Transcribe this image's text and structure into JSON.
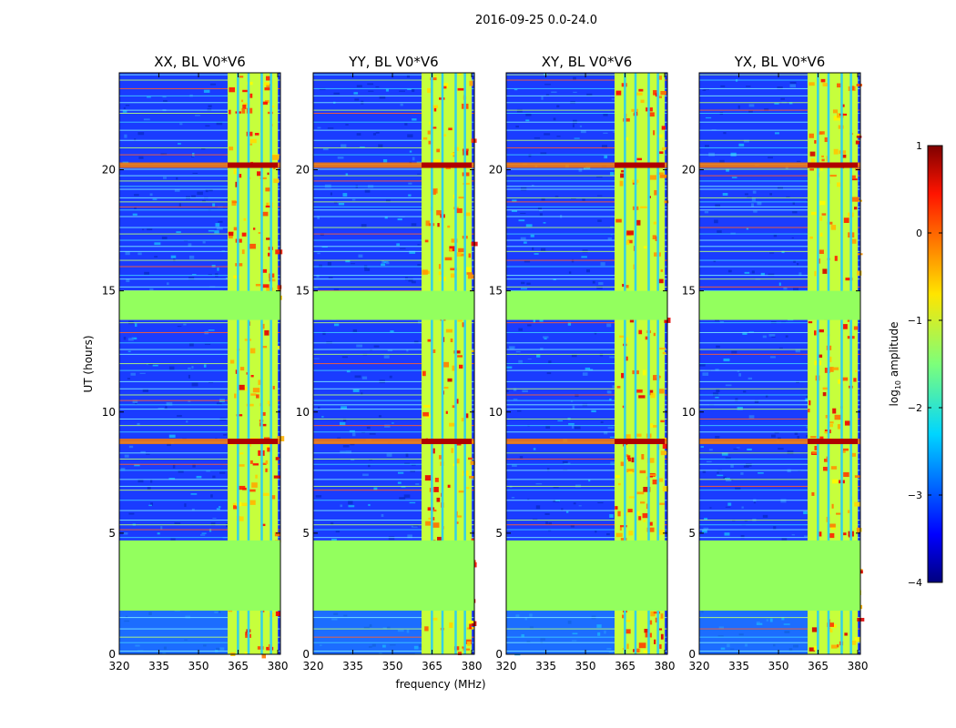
{
  "figure": {
    "suptitle": "2016-09-25 0.0-24.0",
    "xlabel": "frequency (MHz)",
    "ylabel": "UT (hours)"
  },
  "chart_data": {
    "type": "heatmap",
    "title": "2016-09-25 0.0-24.0",
    "xlabel": "frequency (MHz)",
    "ylabel": "UT (hours)",
    "xlim": [
      320,
      381
    ],
    "ylim": [
      0,
      24
    ],
    "xticks": [
      320,
      335,
      350,
      365,
      380
    ],
    "yticks": [
      0,
      5,
      10,
      15,
      20
    ],
    "colormap": "jet",
    "panels": [
      {
        "title": "XX, BL V0*V6"
      },
      {
        "title": "YY, BL V0*V6"
      },
      {
        "title": "XY, BL V0*V6"
      },
      {
        "title": "YX, BL V0*V6"
      }
    ],
    "masked_time_ranges_hours": [
      [
        1.8,
        4.7
      ],
      [
        13.8,
        15.0
      ]
    ],
    "flagged_frequency_band_mhz": [
      361,
      380
    ],
    "strong_rfi_time_hours": [
      8.6,
      20.0
    ],
    "colorbar": {
      "label": "log10 amplitude",
      "label_base": "log",
      "label_sub": "10",
      "label_rest": " amplitude",
      "range": [
        -4,
        1
      ],
      "ticks": [
        "1",
        "0",
        "−1",
        "−2",
        "−3",
        "−4"
      ]
    }
  }
}
